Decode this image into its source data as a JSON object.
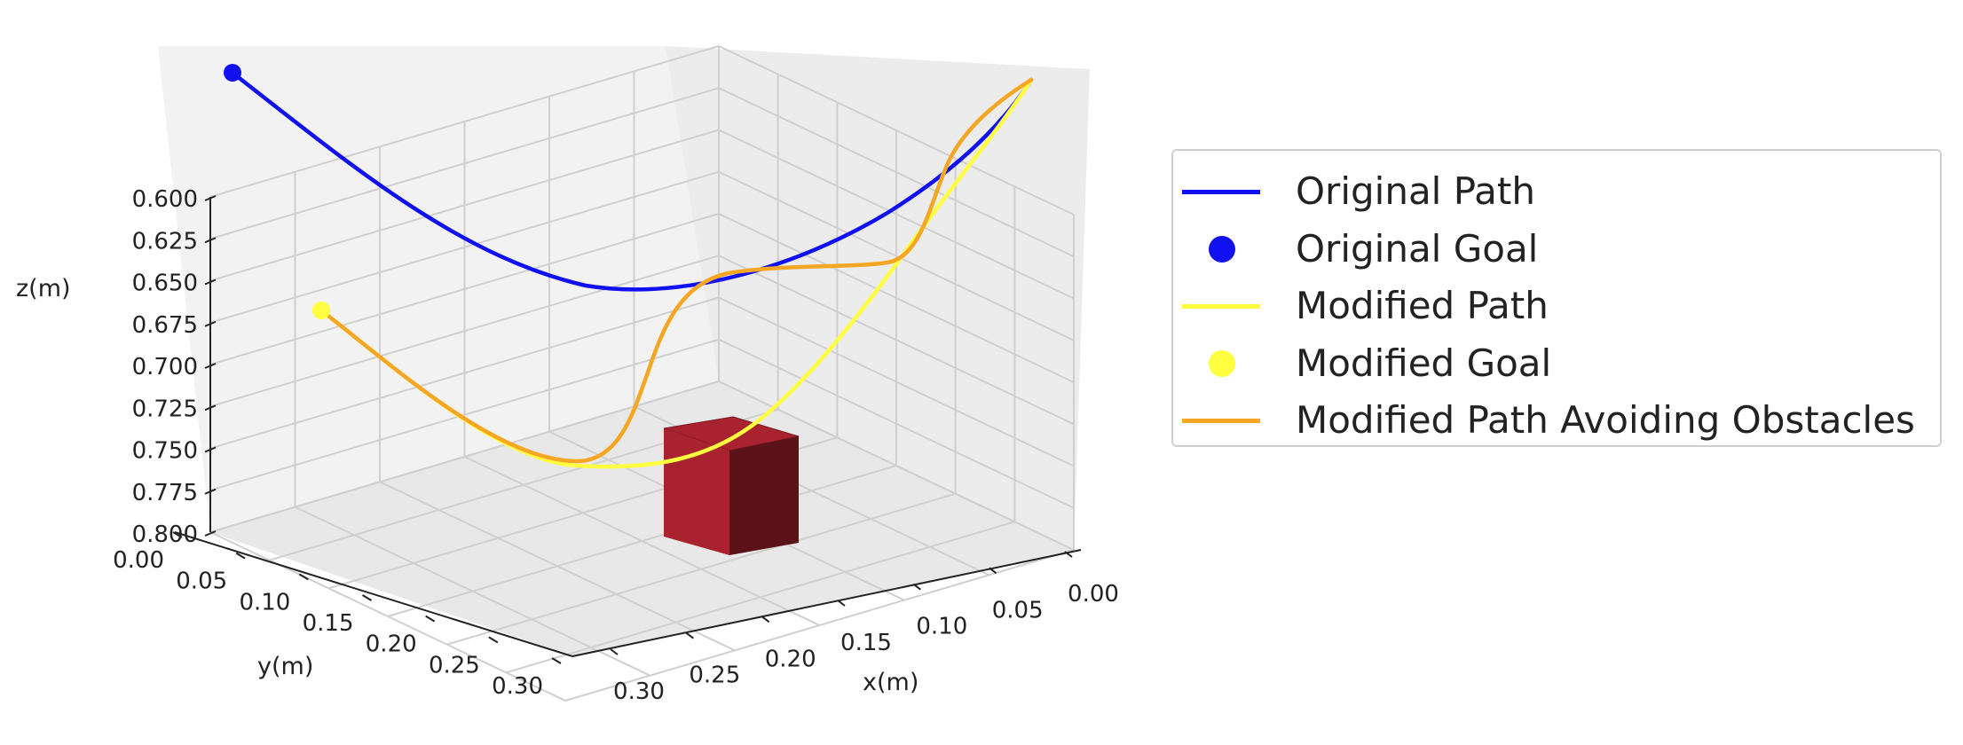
{
  "chart_data": {
    "type": "line",
    "projection": "3d",
    "title": "",
    "xlabel": "x(m)",
    "ylabel": "y(m)",
    "zlabel": "z(m)",
    "x_ticks": [
      "0.00",
      "0.05",
      "0.10",
      "0.15",
      "0.20",
      "0.25",
      "0.30"
    ],
    "y_ticks": [
      "0.00",
      "0.05",
      "0.10",
      "0.15",
      "0.20",
      "0.25",
      "0.30"
    ],
    "z_ticks": [
      "0.600",
      "0.625",
      "0.650",
      "0.675",
      "0.700",
      "0.725",
      "0.750",
      "0.775",
      "0.800"
    ],
    "xlim": [
      0.3,
      0.0
    ],
    "ylim": [
      0.0,
      0.3
    ],
    "zlim": [
      0.8,
      0.6
    ],
    "grid": true,
    "legend_position": "right",
    "series": [
      {
        "name": "Original Path",
        "kind": "line",
        "color": "#1010f0",
        "points": [
          [
            0.0,
            0.3,
            0.6
          ],
          [
            0.05,
            0.26,
            0.64
          ],
          [
            0.1,
            0.22,
            0.672
          ],
          [
            0.15,
            0.18,
            0.692
          ],
          [
            0.2,
            0.14,
            0.698
          ],
          [
            0.25,
            0.1,
            0.69
          ],
          [
            0.28,
            0.06,
            0.665
          ],
          [
            0.3,
            0.02,
            0.63
          ],
          [
            0.3,
            0.0,
            0.6
          ]
        ]
      },
      {
        "name": "Original Goal",
        "kind": "marker",
        "color": "#1010f0",
        "points": [
          [
            0.0,
            0.3,
            0.6
          ]
        ]
      },
      {
        "name": "Modified Path",
        "kind": "line",
        "color": "#ffff40",
        "points": [
          [
            0.0,
            0.3,
            0.712
          ],
          [
            0.05,
            0.26,
            0.745
          ],
          [
            0.1,
            0.22,
            0.768
          ],
          [
            0.15,
            0.18,
            0.778
          ],
          [
            0.2,
            0.14,
            0.775
          ],
          [
            0.25,
            0.1,
            0.755
          ],
          [
            0.28,
            0.06,
            0.715
          ],
          [
            0.3,
            0.02,
            0.65
          ],
          [
            0.3,
            0.0,
            0.6
          ]
        ]
      },
      {
        "name": "Modified Goal",
        "kind": "marker",
        "color": "#ffff40",
        "points": [
          [
            0.0,
            0.3,
            0.712
          ]
        ]
      },
      {
        "name": "Modified Path Avoiding Obstacles",
        "kind": "line",
        "color": "#f5a623",
        "points": [
          [
            0.0,
            0.3,
            0.712
          ],
          [
            0.05,
            0.26,
            0.745
          ],
          [
            0.1,
            0.22,
            0.768
          ],
          [
            0.13,
            0.19,
            0.776
          ],
          [
            0.17,
            0.16,
            0.77
          ],
          [
            0.19,
            0.14,
            0.74
          ],
          [
            0.22,
            0.12,
            0.703
          ],
          [
            0.26,
            0.09,
            0.694
          ],
          [
            0.29,
            0.06,
            0.69
          ],
          [
            0.3,
            0.03,
            0.65
          ],
          [
            0.3,
            0.0,
            0.6
          ]
        ]
      }
    ],
    "obstacle": {
      "shape": "cube",
      "color": "#a8232f"
    }
  }
}
